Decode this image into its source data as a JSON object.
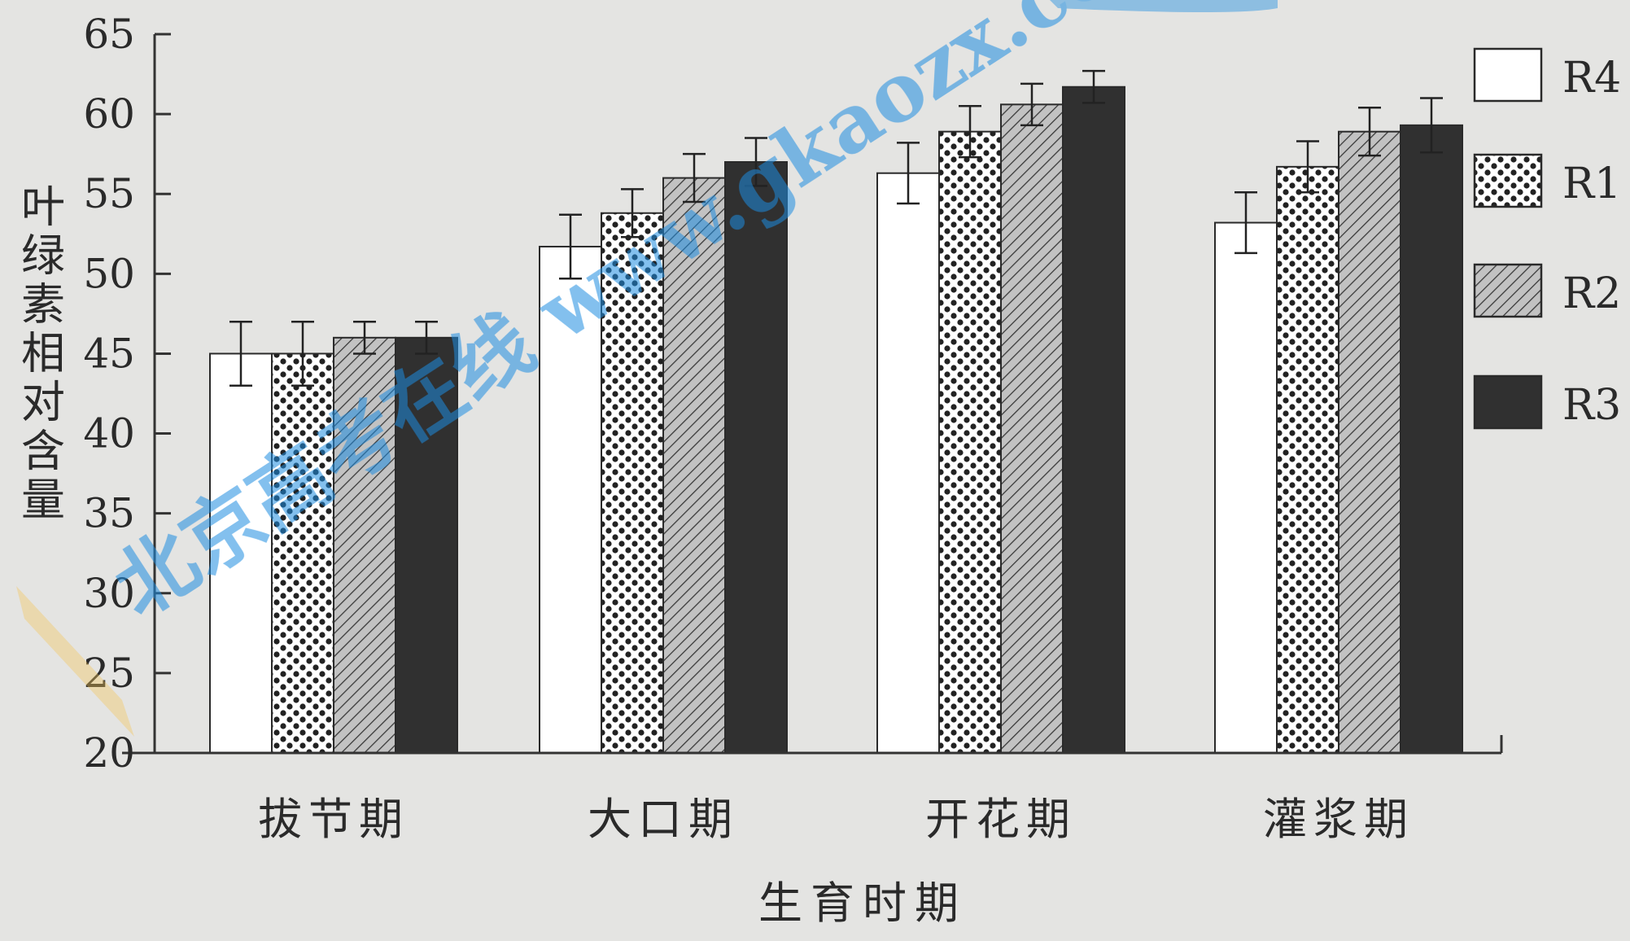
{
  "chart_data": {
    "type": "bar",
    "title": "",
    "xlabel": "生育时期",
    "ylabel": "叶绿素相对含量",
    "ylim": [
      20,
      65
    ],
    "yticks": [
      20,
      25,
      30,
      35,
      40,
      45,
      50,
      55,
      60,
      65
    ],
    "categories": [
      "拔节期",
      "大口期",
      "开花期",
      "灌浆期"
    ],
    "series": [
      {
        "name": "R4",
        "pattern": "white",
        "values": [
          45.0,
          51.7,
          56.3,
          53.2
        ],
        "errors": [
          2.0,
          2.0,
          1.9,
          1.9
        ]
      },
      {
        "name": "R1",
        "pattern": "dots",
        "values": [
          45.0,
          53.8,
          58.9,
          56.7
        ],
        "errors": [
          2.0,
          1.5,
          1.6,
          1.6
        ]
      },
      {
        "name": "R2",
        "pattern": "hatch",
        "values": [
          46.0,
          56.0,
          60.6,
          58.9
        ],
        "errors": [
          1.0,
          1.5,
          1.3,
          1.5
        ]
      },
      {
        "name": "R3",
        "pattern": "dark",
        "values": [
          46.0,
          57.0,
          61.7,
          59.3
        ],
        "errors": [
          1.0,
          1.5,
          1.0,
          1.7
        ]
      }
    ],
    "legend_position": "right",
    "grid": false,
    "watermark": "北京高考在线 www.gkaozx.com",
    "colors": {
      "dark_bar": "#303030",
      "hatch_bar": "#b8b8b8",
      "dot_bar": "#ffffff",
      "white_bar": "#ffffff",
      "watermark_blue": "#1e8de0"
    }
  }
}
